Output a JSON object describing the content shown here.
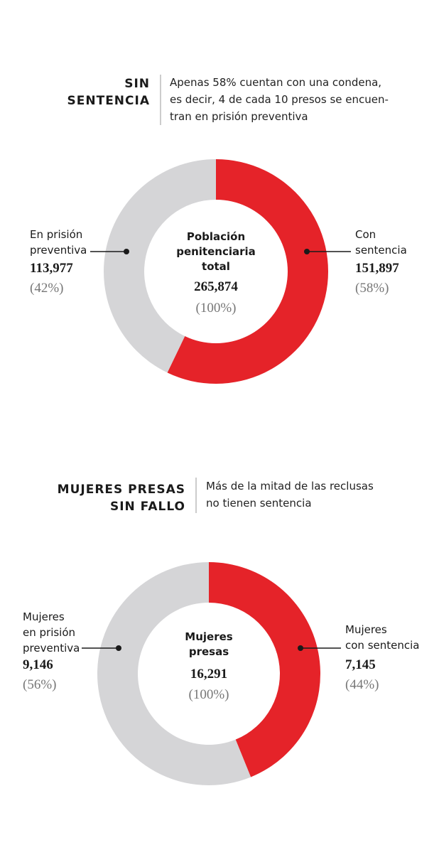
{
  "chart_data": [
    {
      "type": "pie",
      "title": "SIN\nSENTENCIA",
      "subtitle": "Apenas 58% cuentan con una condena,\nes decir, 4 de cada 10 presos se encuen-\ntran en prisión preventiva",
      "center_label": "Población\npenitenciaria\ntotal",
      "total": 265874,
      "total_label": "265,874",
      "total_percent_label": "(100%)",
      "categories": [
        "En prisión\npreventiva",
        "Con\nsentencia"
      ],
      "values": [
        113977,
        151897
      ],
      "value_labels": [
        "113,977",
        "151,897"
      ],
      "percent_labels": [
        "(42%)",
        "(58%)"
      ],
      "colors": [
        "#d5d5d7",
        "#e52329"
      ]
    },
    {
      "type": "pie",
      "title": "MUJERES PRESAS\nSIN FALLO",
      "subtitle": "Más de la mitad de las reclusas\nno tienen sentencia",
      "center_label": "Mujeres\npresas",
      "total": 16291,
      "total_label": "16,291",
      "total_percent_label": "(100%)",
      "categories": [
        "Mujeres\nen prisión\npreventiva",
        "Mujeres\ncon sentencia"
      ],
      "values": [
        9146,
        7145
      ],
      "value_labels": [
        "9,146",
        "7,145"
      ],
      "percent_labels": [
        "(56%)",
        "(44%)"
      ],
      "colors": [
        "#d5d5d7",
        "#e52329"
      ]
    }
  ]
}
